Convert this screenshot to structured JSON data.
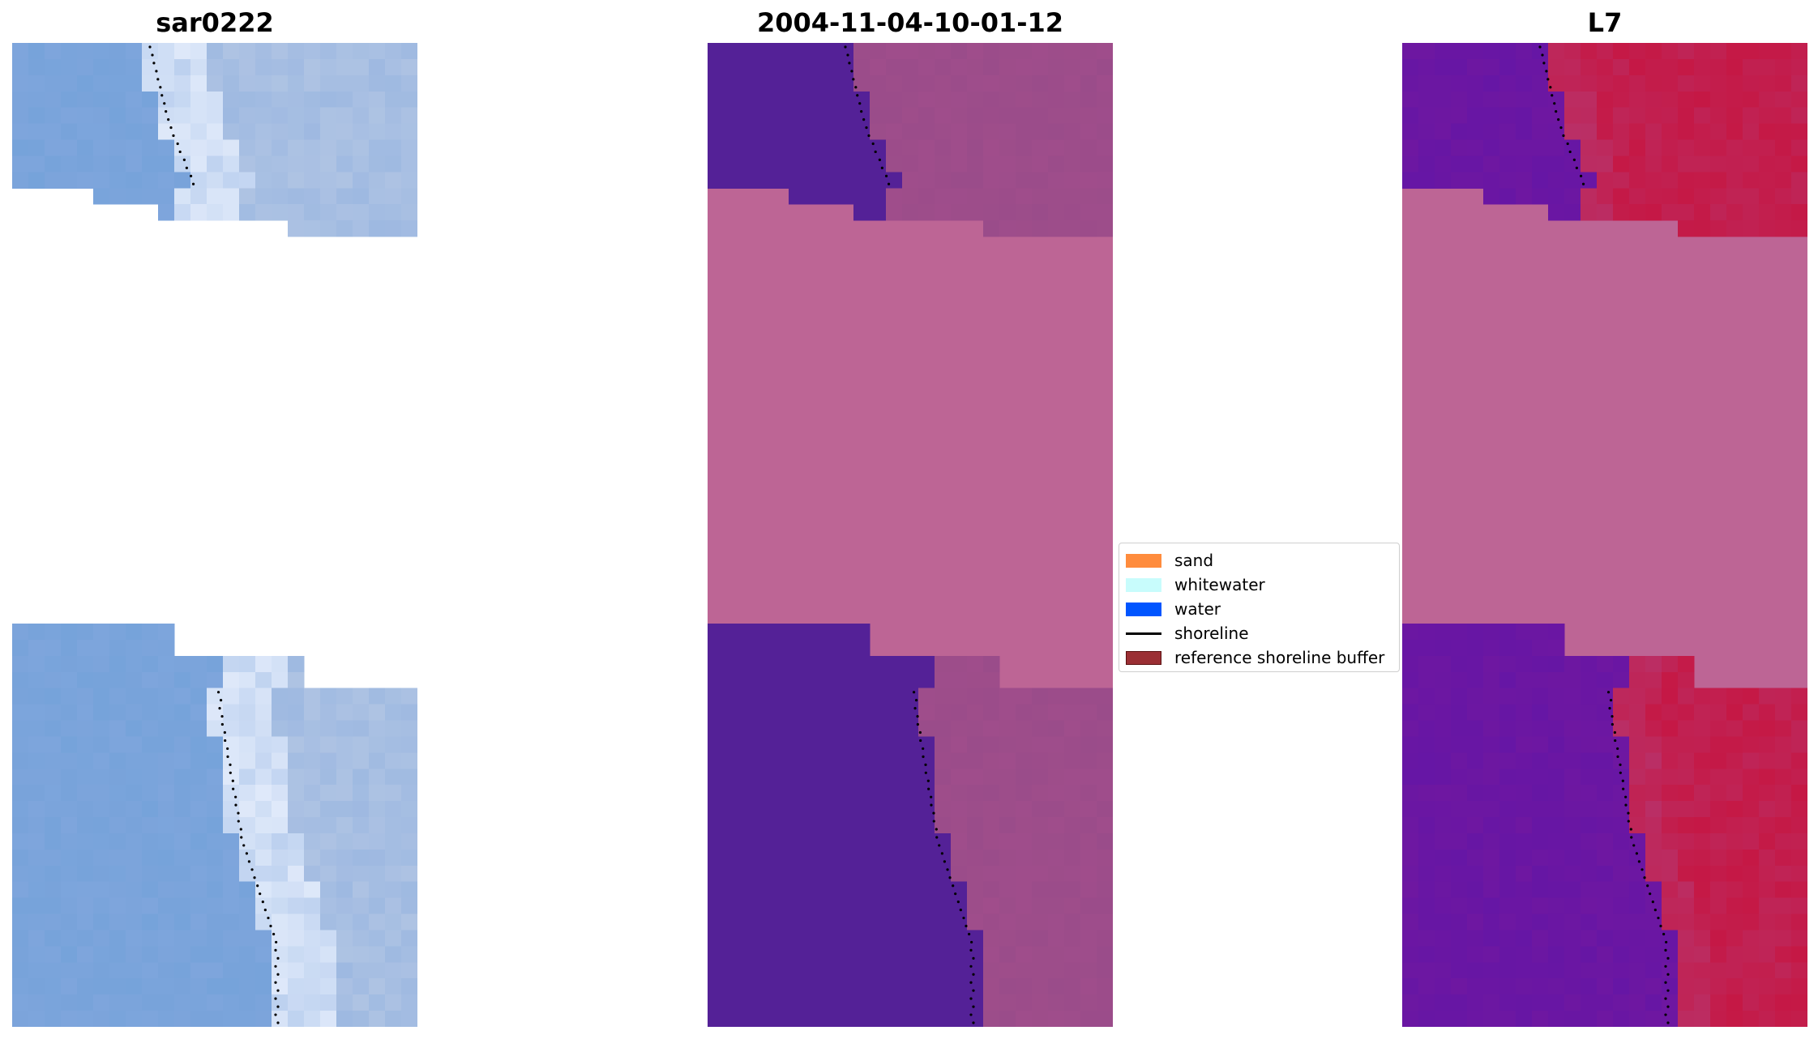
{
  "panels": [
    {
      "title": "sar0222",
      "style": "rgb"
    },
    {
      "title": "2004-11-04-10-01-12",
      "style": "classified"
    },
    {
      "title": "L7",
      "style": "index"
    }
  ],
  "legend": {
    "items": [
      {
        "label": "sand",
        "color": "#ff8c3d",
        "kind": "patch"
      },
      {
        "label": "whitewater",
        "color": "#c8fcfc",
        "kind": "patch"
      },
      {
        "label": "water",
        "color": "#0055ff",
        "kind": "patch"
      },
      {
        "label": "shoreline",
        "color": "#000000",
        "kind": "line"
      },
      {
        "label": "reference shoreline buffer",
        "color": "#9b2f34",
        "kind": "patch"
      }
    ]
  },
  "colors": {
    "nodata": "#bd6595",
    "water_class": "#542197",
    "land_class": "#9a4c8a",
    "index_water": "#6e17a1",
    "index_land": "#c51845",
    "rgb_base": "#7ea5dc"
  }
}
